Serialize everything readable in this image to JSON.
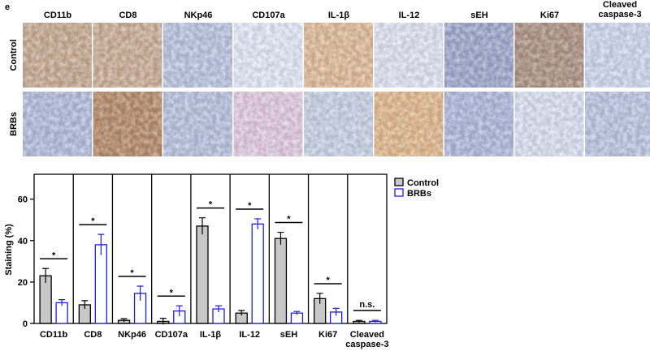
{
  "figure_label": "e",
  "image_panel": {
    "columns": [
      "CD11b",
      "CD8",
      "NKp46",
      "CD107a",
      "IL-1β",
      "IL-12",
      "sEH",
      "Ki67",
      "Cleaved caspase-3"
    ],
    "rows": [
      "Control",
      "BRBs"
    ]
  },
  "chart_data": {
    "type": "bar",
    "y_label": "Staining (%)",
    "categories": [
      "CD11b",
      "CD8",
      "NKp46",
      "CD107a",
      "IL-1β",
      "IL-12",
      "sEH",
      "Ki67",
      "Cleaved caspase-3"
    ],
    "series": [
      {
        "name": "Control",
        "color": "#c8c8c8",
        "edge": "#000000",
        "values": [
          23,
          9,
          1.5,
          1,
          47,
          5,
          41,
          12,
          1
        ],
        "errors": [
          3.5,
          2,
          0.8,
          1.5,
          4,
          1.2,
          3,
          2.5,
          0.5
        ]
      },
      {
        "name": "BRBs",
        "color": "#ffffff",
        "edge": "#1f1fd6",
        "values": [
          10,
          38,
          14.5,
          6,
          7,
          48,
          5,
          5.5,
          1
        ],
        "errors": [
          1.5,
          5,
          3.5,
          2.5,
          1.5,
          2.5,
          0.8,
          1.8,
          0.5
        ]
      }
    ],
    "significance": [
      "*",
      "*",
      "*",
      "*",
      "*",
      "*",
      "*",
      "*",
      "n.s."
    ],
    "ylim": [
      0,
      72
    ],
    "yticks": [
      0,
      20,
      40,
      60
    ],
    "legend": "top-right"
  }
}
